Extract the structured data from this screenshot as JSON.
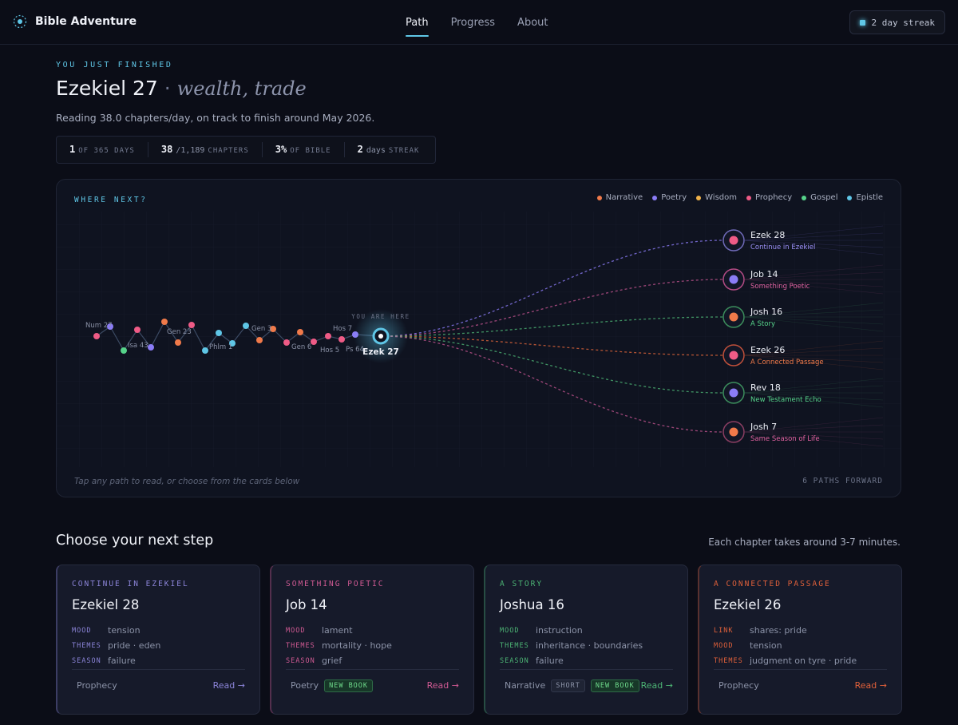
{
  "nav": {
    "brand": "Bible Adventure",
    "links": [
      "Path",
      "Progress",
      "About"
    ],
    "active": "Path",
    "streak_label": "2 day streak"
  },
  "hero": {
    "eyebrow": "YOU JUST FINISHED",
    "chapter": "Ezekiel 27",
    "separator": "·",
    "themes": "wealth, trade",
    "subline": "Reading 38.0 chapters/day, on track to finish around May 2026."
  },
  "stats": [
    {
      "num": "1",
      "lbl": "OF 365 DAYS"
    },
    {
      "num": "38",
      "mid": "/1,189",
      "lbl": "CHAPTERS"
    },
    {
      "num": "3%",
      "lbl": "OF BIBLE"
    },
    {
      "num": "2",
      "mid": "days",
      "lbl": "STREAK"
    }
  ],
  "map": {
    "title": "WHERE NEXT?",
    "legend": [
      {
        "name": "Narrative",
        "color": "#f07a4a"
      },
      {
        "name": "Poetry",
        "color": "#8b7cf6"
      },
      {
        "name": "Wisdom",
        "color": "#f0b24a"
      },
      {
        "name": "Prophecy",
        "color": "#ef5b86"
      },
      {
        "name": "Gospel",
        "color": "#56d38a"
      },
      {
        "name": "Epistle",
        "color": "#5fc6e6"
      }
    ],
    "you_are_here": "YOU ARE HERE",
    "current": "Ezek 27",
    "history_labels": [
      "Num 27",
      "Isa 43",
      "Gen 23",
      "Phlm 1",
      "Gen 3",
      "Gen 6",
      "Hos 7",
      "Hos 5",
      "Ps 64"
    ],
    "destinations": [
      {
        "label": "Ezek 28",
        "sub": "Continue in Ezekiel",
        "sub_color": "#9b8ff6",
        "line": "#8b7cf6",
        "dot": "#ef5b86",
        "ring": "#6f6ab8"
      },
      {
        "label": "Job 14",
        "sub": "Something Poetic",
        "sub_color": "#e062a0",
        "line": "#c0548e",
        "dot": "#8b7cf6",
        "ring": "#b34b84"
      },
      {
        "label": "Josh 16",
        "sub": "A Story",
        "sub_color": "#56d38a",
        "line": "#4cb474",
        "dot": "#f07a4a",
        "ring": "#3c8e5c"
      },
      {
        "label": "Ezek 26",
        "sub": "A Connected Passage",
        "sub_color": "#f07a4a",
        "line": "#e0653a",
        "dot": "#ef5b86",
        "ring": "#c0503a"
      },
      {
        "label": "Rev 18",
        "sub": "New Testament Echo",
        "sub_color": "#56d38a",
        "line": "#4cb474",
        "dot": "#8b7cf6",
        "ring": "#3c8e5c"
      },
      {
        "label": "Josh 7",
        "sub": "Same Season of Life",
        "sub_color": "#e062a0",
        "line": "#c0548e",
        "dot": "#f07a4a",
        "ring": "#8b3e62"
      }
    ],
    "hint": "Tap any path to read, or choose from the cards below",
    "paths_count": "6 PATHS FORWARD"
  },
  "choose": {
    "title": "Choose your next step",
    "note": "Each chapter takes around 3-7 minutes."
  },
  "cards": [
    {
      "tag": "CONTINUE IN EZEKIEL",
      "accent": "#8b84d8",
      "title": "Ezekiel 28",
      "rows": [
        {
          "k": "MOOD",
          "v": "tension"
        },
        {
          "k": "THEMES",
          "v": "pride · eden"
        },
        {
          "k": "SEASON",
          "v": "failure"
        }
      ],
      "category": "Prophecy",
      "badges": [],
      "read": "Read →"
    },
    {
      "tag": "SOMETHING POETIC",
      "accent": "#d05a93",
      "title": "Job 14",
      "rows": [
        {
          "k": "MOOD",
          "v": "lament"
        },
        {
          "k": "THEMES",
          "v": "mortality · hope"
        },
        {
          "k": "SEASON",
          "v": "grief"
        }
      ],
      "category": "Poetry",
      "badges": [
        {
          "text": "NEW BOOK",
          "kind": "new"
        }
      ],
      "read": "Read →"
    },
    {
      "tag": "A STORY",
      "accent": "#4cb474",
      "title": "Joshua 16",
      "rows": [
        {
          "k": "MOOD",
          "v": "instruction"
        },
        {
          "k": "THEMES",
          "v": "inheritance · boundaries"
        },
        {
          "k": "SEASON",
          "v": "failure"
        }
      ],
      "category": "Narrative",
      "badges": [
        {
          "text": "SHORT",
          "kind": "short"
        },
        {
          "text": "NEW BOOK",
          "kind": "new"
        }
      ],
      "read": "Read →"
    },
    {
      "tag": "A CONNECTED PASSAGE",
      "accent": "#e0603a",
      "title": "Ezekiel 26",
      "rows": [
        {
          "k": "LINK",
          "v": "shares: pride"
        },
        {
          "k": "MOOD",
          "v": "tension"
        },
        {
          "k": "THEMES",
          "v": "judgment on tyre · pride"
        }
      ],
      "category": "Prophecy",
      "badges": [],
      "read": "Read →"
    }
  ]
}
